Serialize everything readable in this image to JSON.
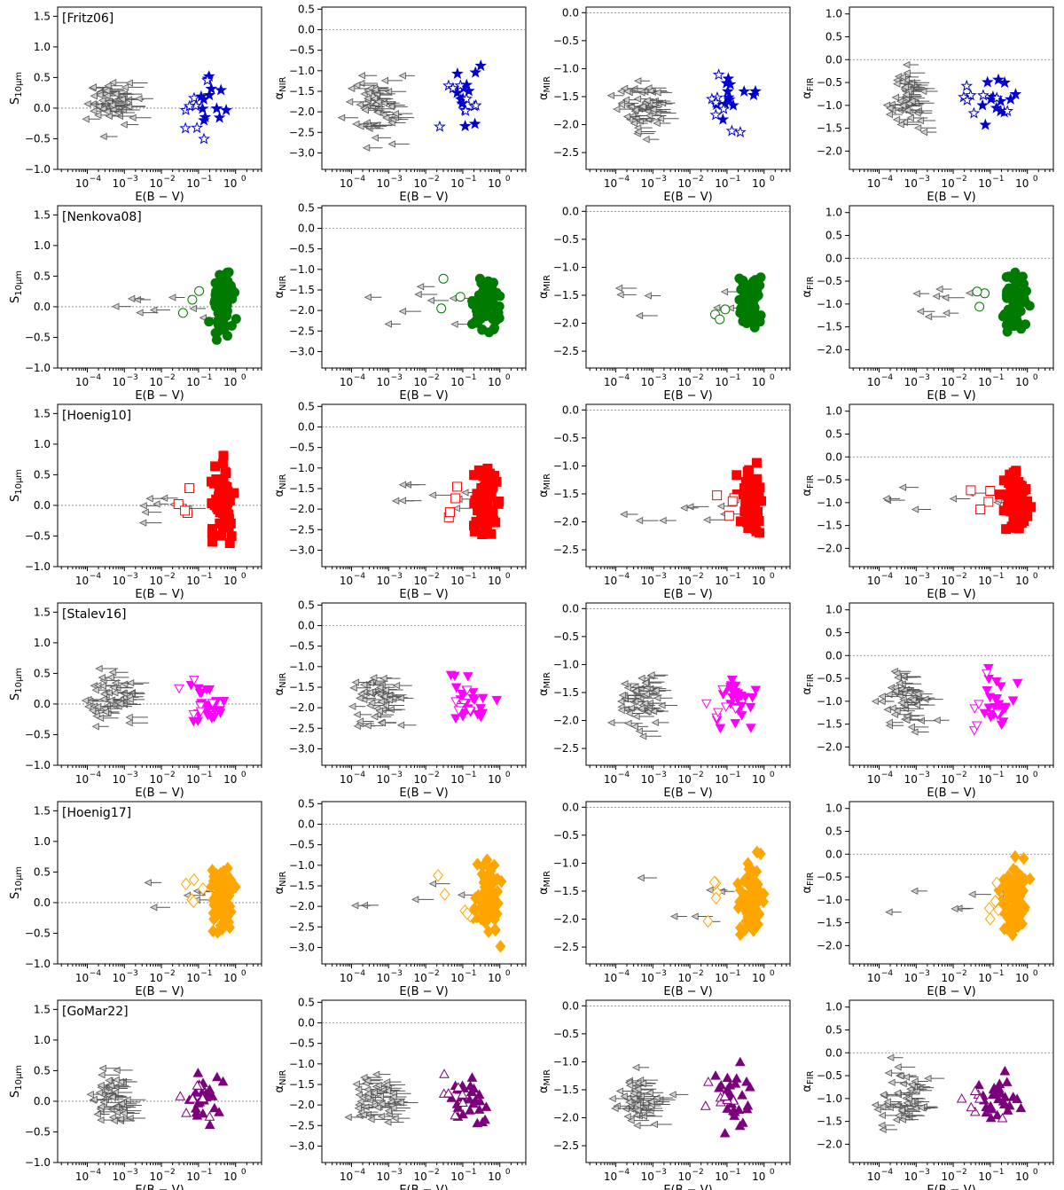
{
  "columns": [
    {
      "key": "s10",
      "ylabel": "S",
      "ysub": "10μm",
      "ylim": [
        -1.0,
        1.65
      ],
      "yticks": [
        -1.0,
        -0.5,
        0.0,
        0.5,
        1.0,
        1.5
      ],
      "yticklabels": [
        "−1.0",
        "−0.5",
        "0.0",
        "0.5",
        "1.0",
        "1.5"
      ]
    },
    {
      "key": "anir",
      "ylabel": "α",
      "ysub": "NIR",
      "ylim": [
        -3.4,
        0.55
      ],
      "yticks": [
        -3.0,
        -2.5,
        -2.0,
        -1.5,
        -1.0,
        -0.5,
        0.0,
        0.5
      ],
      "yticklabels": [
        "−3.0",
        "−2.5",
        "−2.0",
        "−1.5",
        "−1.0",
        "−0.5",
        "0.0",
        "0.5"
      ]
    },
    {
      "key": "amir",
      "ylabel": "α",
      "ysub": "MIR",
      "ylim": [
        -2.8,
        0.1
      ],
      "yticks": [
        -2.5,
        -2.0,
        -1.5,
        -1.0,
        -0.5,
        0.0
      ],
      "yticklabels": [
        "−2.5",
        "−2.0",
        "−1.5",
        "−1.0",
        "−0.5",
        "0.0"
      ]
    },
    {
      "key": "afir",
      "ylabel": "α",
      "ysub": "FIR",
      "ylim": [
        -2.4,
        1.15
      ],
      "yticks": [
        -2.0,
        -1.5,
        -1.0,
        -0.5,
        0.0,
        0.5,
        1.0
      ],
      "yticklabels": [
        "−2.0",
        "−1.5",
        "−1.0",
        "−0.5",
        "0.0",
        "0.5",
        "1.0"
      ]
    }
  ],
  "xaxis": {
    "label": "E(B − V)",
    "log_range": [
      -4.8,
      0.7
    ],
    "major_ticks": [
      -4,
      -3,
      -2,
      -1,
      0
    ],
    "tick_base": "10",
    "tick_exps": [
      "−4",
      "−3",
      "−2",
      "−1",
      "0"
    ]
  },
  "chart_data": [
    {
      "type": "scatter",
      "model": "[Fritz06]",
      "marker": "star",
      "color": "#0000cc",
      "n_upper": 56,
      "n_filled": 13,
      "n_open": 8,
      "spread": 0.2
    },
    {
      "type": "scatter",
      "model": "[Nenkova08]",
      "marker": "circle",
      "color": "#007a00",
      "n_upper": 8,
      "n_filled": 70,
      "n_open": 3,
      "spread": 0.14
    },
    {
      "type": "scatter",
      "model": "[Hoenig10]",
      "marker": "square",
      "color": "#ff0000",
      "n_upper": 8,
      "n_filled": 75,
      "n_open": 4,
      "spread": 0.16
    },
    {
      "type": "scatter",
      "model": "[Stalev16]",
      "marker": "triangle-down",
      "color": "#ff00ff",
      "n_upper": 52,
      "n_filled": 25,
      "n_open": 6,
      "spread": 0.35
    },
    {
      "type": "scatter",
      "model": "[Hoenig17]",
      "marker": "diamond",
      "color": "#ffa500",
      "n_upper": 6,
      "n_filled": 90,
      "n_open": 5,
      "spread": 0.22
    },
    {
      "type": "scatter",
      "model": "[GoMar22]",
      "marker": "triangle-up",
      "color": "#7b007b",
      "n_upper": 52,
      "n_filled": 28,
      "n_open": 7,
      "spread": 0.4
    }
  ]
}
